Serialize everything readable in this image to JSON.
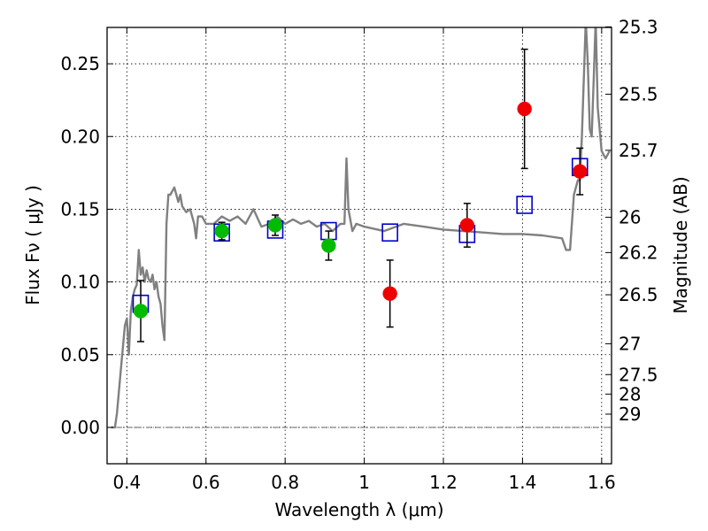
{
  "chart_data": {
    "type": "scatter",
    "title": "",
    "xlabel": "Wavelength  λ (μm)",
    "ylabel": "Flux  Fν  ( μJy )",
    "y2label": "Magnitude (AB)",
    "xlim": [
      0.35,
      1.625
    ],
    "ylim": [
      -0.025,
      0.275
    ],
    "grid": true,
    "xticks": [
      0.4,
      0.6,
      0.8,
      1.0,
      1.2,
      1.4,
      1.6
    ],
    "xtick_labels": [
      "0.4",
      "0.6",
      "0.8",
      "1",
      "1.2",
      "1.4",
      "1.6"
    ],
    "yticks": [
      0.0,
      0.05,
      0.1,
      0.15,
      0.2,
      0.25
    ],
    "ytick_labels": [
      "0.00",
      "0.05",
      "0.10",
      "0.15",
      "0.20",
      "0.25"
    ],
    "mag_ticks": [
      {
        "flux": 0.2754,
        "label": "25.3"
      },
      {
        "flux": 0.2291,
        "label": "25.5"
      },
      {
        "flux": 0.1905,
        "label": "25.7"
      },
      {
        "flux": 0.1445,
        "label": "26"
      },
      {
        "flux": 0.1202,
        "label": "26.2"
      },
      {
        "flux": 0.0912,
        "label": "26.5"
      },
      {
        "flux": 0.0575,
        "label": "27"
      },
      {
        "flux": 0.0363,
        "label": "27.5"
      },
      {
        "flux": 0.0229,
        "label": "28"
      },
      {
        "flux": 0.0091,
        "label": "29"
      }
    ],
    "series": [
      {
        "kind": "line",
        "color": "#808080",
        "x": [
          0.36,
          0.37,
          0.375,
          0.385,
          0.395,
          0.4,
          0.405,
          0.41,
          0.415,
          0.42,
          0.425,
          0.43,
          0.435,
          0.44,
          0.445,
          0.45,
          0.455,
          0.46,
          0.465,
          0.47,
          0.475,
          0.48,
          0.485,
          0.49,
          0.495,
          0.5,
          0.505,
          0.51,
          0.52,
          0.53,
          0.535,
          0.54,
          0.545,
          0.55,
          0.56,
          0.57,
          0.575,
          0.58,
          0.59,
          0.6,
          0.62,
          0.64,
          0.66,
          0.68,
          0.7,
          0.72,
          0.74,
          0.76,
          0.78,
          0.8,
          0.82,
          0.84,
          0.86,
          0.88,
          0.9,
          0.92,
          0.94,
          0.95,
          0.955,
          0.96,
          0.97,
          0.98,
          1.0,
          1.05,
          1.1,
          1.15,
          1.2,
          1.25,
          1.3,
          1.35,
          1.4,
          1.45,
          1.5,
          1.51,
          1.52,
          1.53,
          1.54,
          1.545,
          1.55,
          1.56,
          1.565,
          1.57,
          1.575,
          1.58,
          1.585,
          1.59,
          1.6,
          1.61,
          1.62
        ],
        "y": [
          0.0,
          0.0,
          0.01,
          0.04,
          0.07,
          0.075,
          0.05,
          0.08,
          0.09,
          0.095,
          0.098,
          0.122,
          0.105,
          0.11,
          0.1,
          0.108,
          0.102,
          0.1,
          0.105,
          0.095,
          0.1,
          0.09,
          0.085,
          0.07,
          0.06,
          0.14,
          0.16,
          0.16,
          0.165,
          0.155,
          0.16,
          0.152,
          0.15,
          0.148,
          0.15,
          0.14,
          0.13,
          0.145,
          0.145,
          0.14,
          0.14,
          0.145,
          0.142,
          0.145,
          0.14,
          0.15,
          0.138,
          0.14,
          0.145,
          0.14,
          0.143,
          0.14,
          0.142,
          0.138,
          0.14,
          0.135,
          0.14,
          0.14,
          0.185,
          0.15,
          0.135,
          0.14,
          0.138,
          0.135,
          0.14,
          0.138,
          0.136,
          0.135,
          0.134,
          0.133,
          0.133,
          0.132,
          0.13,
          0.122,
          0.122,
          0.16,
          0.17,
          0.17,
          0.2,
          0.28,
          0.25,
          0.205,
          0.2,
          0.24,
          0.28,
          0.22,
          0.19,
          0.185,
          0.19
        ]
      },
      {
        "kind": "markers",
        "marker": "square-open",
        "color": "#0000cc",
        "x": [
          0.435,
          0.64,
          0.775,
          0.91,
          1.065,
          1.26,
          1.405,
          1.545
        ],
        "y": [
          0.085,
          0.134,
          0.136,
          0.135,
          0.134,
          0.133,
          0.153,
          0.179
        ]
      },
      {
        "kind": "markers",
        "marker": "circle",
        "color": "#00bb00",
        "x": [
          0.435,
          0.64,
          0.775,
          0.91
        ],
        "y": [
          0.08,
          0.135,
          0.139,
          0.125
        ],
        "yerr": [
          0.021,
          0.006,
          0.007,
          0.01
        ]
      },
      {
        "kind": "markers",
        "marker": "circle",
        "color": "#ee0000",
        "x": [
          1.065,
          1.26,
          1.405,
          1.545
        ],
        "y": [
          0.092,
          0.139,
          0.219,
          0.176
        ],
        "yerr": [
          0.023,
          0.015,
          0.041,
          0.016
        ]
      }
    ]
  }
}
